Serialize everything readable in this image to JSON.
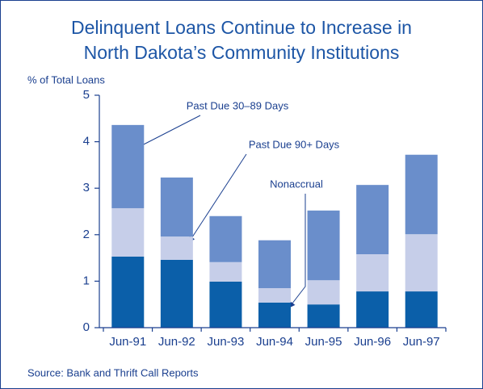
{
  "chart_data": {
    "type": "stacked_bar",
    "title": [
      "Delinquent Loans Continue to Increase in",
      "North Dakota’s Community Institutions"
    ],
    "y_label": "% of Total Loans",
    "source": "Source: Bank and Thrift Call Reports",
    "categories": [
      "Jun-91",
      "Jun-92",
      "Jun-93",
      "Jun-94",
      "Jun-95",
      "Jun-96",
      "Jun-97"
    ],
    "series": [
      {
        "name": "Nonaccrual",
        "color": "#0b5fa9",
        "values": [
          1.53,
          1.46,
          0.99,
          0.54,
          0.5,
          0.78,
          0.78
        ]
      },
      {
        "name": "Past Due 90+ Days",
        "color": "#c6cee9",
        "values": [
          1.04,
          0.5,
          0.42,
          0.31,
          0.52,
          0.8,
          1.23
        ]
      },
      {
        "name": "Past Due 30–89 Days",
        "color": "#6a8ecb",
        "values": [
          1.79,
          1.27,
          0.99,
          1.03,
          1.5,
          1.49,
          1.71
        ]
      }
    ],
    "ylim": [
      0,
      5
    ],
    "yticks": [
      0,
      1,
      2,
      3,
      4,
      5
    ]
  }
}
